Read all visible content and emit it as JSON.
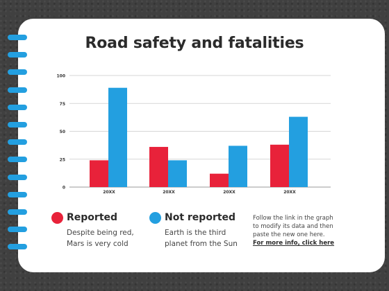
{
  "slide": {
    "title": "Road safety and fatalities"
  },
  "colors": {
    "reported": "#e8223a",
    "not_reported": "#239fe0",
    "card": "#ffffff",
    "background": "#404040",
    "text": "#2b2b2b"
  },
  "chart_data": {
    "type": "bar",
    "categories": [
      "20XX",
      "20XX",
      "20XX",
      "20XX"
    ],
    "series": [
      {
        "name": "Reported",
        "values": [
          24,
          36,
          12,
          38
        ]
      },
      {
        "name": "Not reported",
        "values": [
          89,
          24,
          37,
          63
        ]
      }
    ],
    "yticks": [
      "0",
      "25",
      "50",
      "75",
      "100"
    ],
    "ylim": [
      0,
      100
    ],
    "grid": true,
    "legend_position": "bottom"
  },
  "legend": [
    {
      "label": "Reported",
      "description_lines": [
        "Despite being red,",
        "Mars is very cold"
      ]
    },
    {
      "label": "Not reported",
      "description_lines": [
        "Earth is the third",
        "planet from the Sun"
      ]
    }
  ],
  "note": {
    "lines": [
      "Follow the link in the graph",
      "to modify its data and then",
      "paste the new one here."
    ],
    "link_text": "For more info, click here"
  }
}
